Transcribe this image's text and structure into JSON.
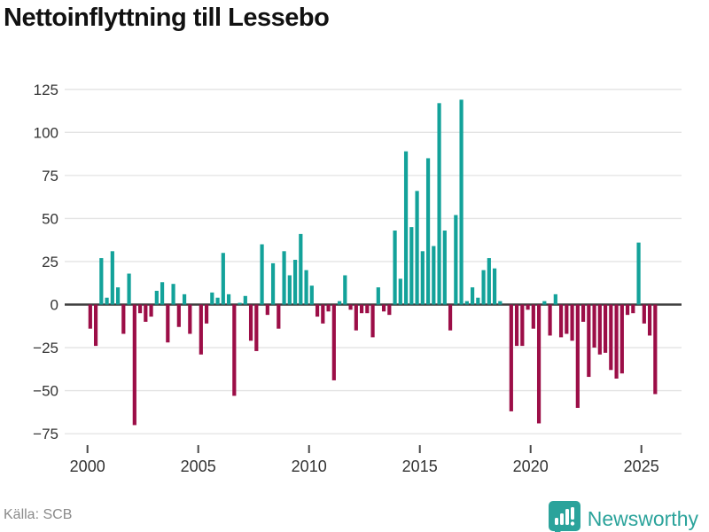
{
  "title": "Nettoinflyttning till Lessebo",
  "footer": {
    "source_label": "Källa: SCB",
    "brand": "Newsworthy"
  },
  "colors": {
    "positive_bar": "#13a29a",
    "negative_bar": "#9c0e47",
    "zero_axis": "#3d3d3d",
    "gridline": "#e3e3e3",
    "tick": "#4a4a4a",
    "label_text": "#333333",
    "brand_teal": "#2ba39b",
    "source_text": "#8a8a8a"
  },
  "chart_data": {
    "type": "bar",
    "title": "Nettoinflyttning till Lessebo",
    "frequency": "quarterly",
    "start_year": 2000,
    "end_label": "2025Q3",
    "note_missing_quarters": [
      "2004Q4",
      "2018Q4"
    ],
    "x_tick_labels": [
      "2000",
      "2005",
      "2010",
      "2015",
      "2020",
      "2025"
    ],
    "y_tick_labels": [
      "125",
      "100",
      "75",
      "50",
      "25",
      "0",
      "−25",
      "−50",
      "−75"
    ],
    "y_tick_values": [
      125,
      100,
      75,
      50,
      25,
      0,
      -25,
      -50,
      -75
    ],
    "ylim": [
      -85,
      135
    ],
    "grid": true,
    "legend": "none",
    "series": [
      {
        "name": "Nettoinflyttning",
        "values": [
          -14,
          -24,
          27,
          4,
          31,
          10,
          -17,
          18,
          -70,
          -5,
          -10,
          -7,
          8,
          13,
          -22,
          12,
          -13,
          6,
          -17,
          null,
          -29,
          -11,
          7,
          4,
          30,
          6,
          -53,
          1,
          5,
          -21,
          -27,
          35,
          -6,
          24,
          -14,
          31,
          17,
          26,
          41,
          20,
          11,
          -7,
          -11,
          -4,
          -44,
          2,
          17,
          -3,
          -15,
          -5,
          -5,
          -19,
          10,
          -4,
          -6,
          43,
          15,
          89,
          45,
          66,
          31,
          85,
          34,
          117,
          43,
          -15,
          52,
          119,
          2,
          10,
          4,
          20,
          27,
          21,
          2,
          null,
          -62,
          -24,
          -24,
          -3,
          -14,
          -69,
          2,
          -18,
          6,
          -19,
          -17,
          -21,
          -60,
          -10,
          -42,
          -25,
          -29,
          -28,
          -38,
          -43,
          -40,
          -6,
          -5,
          36,
          -11,
          -18,
          -52
        ]
      }
    ]
  }
}
